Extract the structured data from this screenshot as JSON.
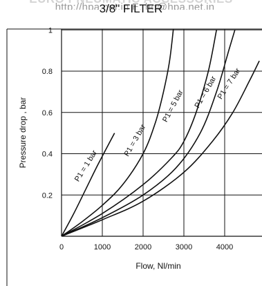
{
  "header": {
    "banner": "EURO PNEUMATIC ACCESSORIES",
    "site": "http://hpa.net.in   E: hq@hpa.net.in"
  },
  "chart_data": {
    "type": "line",
    "title": "3/8\" FILTER",
    "xlabel": "Flow, Nl/min",
    "ylabel": "Pressure drop , bar",
    "xlim": [
      0,
      4900
    ],
    "ylim": [
      0,
      1.05
    ],
    "xticks": [
      0,
      1000,
      2000,
      3000,
      4000
    ],
    "yticks": [
      0.2,
      0.4,
      0.6,
      0.8,
      1
    ],
    "grid": true,
    "series": [
      {
        "name": "P1 = 1 bar",
        "x": [
          0,
          300,
          600,
          900,
          1300
        ],
        "y": [
          0,
          0.11,
          0.23,
          0.35,
          0.5
        ]
      },
      {
        "name": "P1 = 3 bar",
        "x": [
          0,
          500,
          1000,
          1500,
          2000,
          2300,
          2500,
          2650,
          2750
        ],
        "y": [
          0,
          0.07,
          0.15,
          0.25,
          0.4,
          0.55,
          0.7,
          0.85,
          1.02
        ]
      },
      {
        "name": "P1 = 5 bar",
        "x": [
          0,
          1000,
          2000,
          2700,
          3000,
          3300,
          3600,
          3800
        ],
        "y": [
          0,
          0.11,
          0.25,
          0.38,
          0.46,
          0.6,
          0.8,
          1.0
        ]
      },
      {
        "name": "P1 = 6 bar",
        "x": [
          0,
          1000,
          2000,
          2800,
          3400,
          3800,
          4100,
          4250
        ],
        "y": [
          0,
          0.09,
          0.2,
          0.33,
          0.5,
          0.7,
          0.9,
          1.0
        ]
      },
      {
        "name": "P1 = 7 bar",
        "x": [
          0,
          1000,
          2000,
          3000,
          3700,
          4200,
          4600,
          4850
        ],
        "y": [
          0,
          0.08,
          0.17,
          0.31,
          0.46,
          0.6,
          0.75,
          0.85
        ]
      }
    ]
  }
}
